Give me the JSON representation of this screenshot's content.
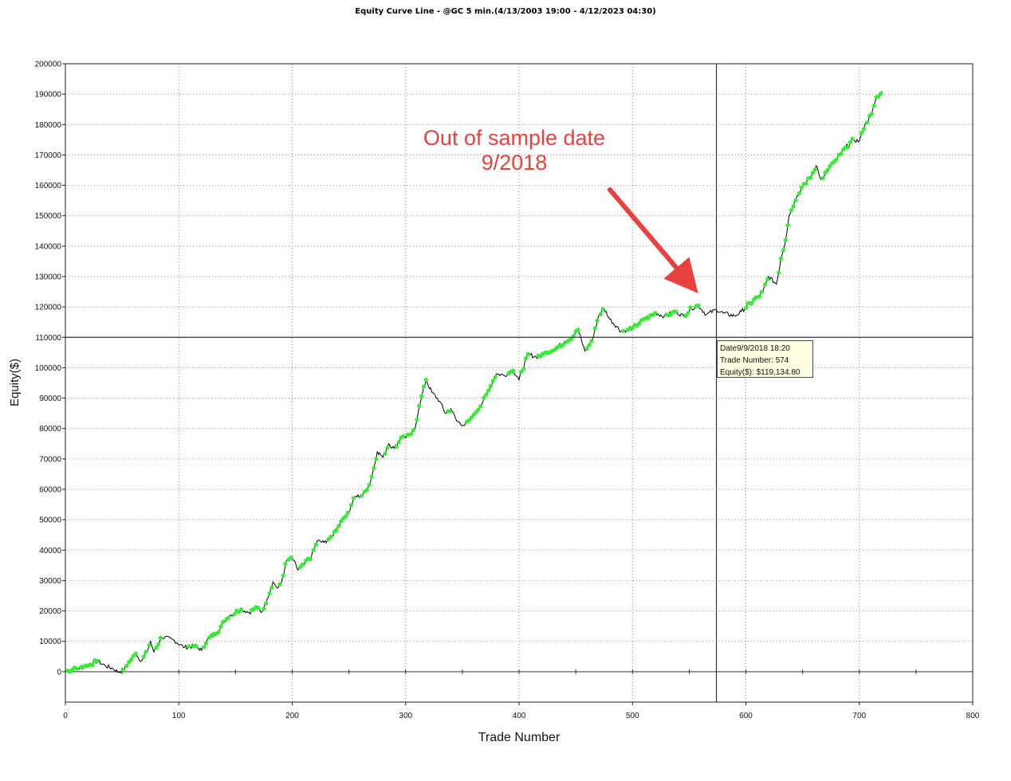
{
  "chart_data": {
    "type": "line",
    "title": "Equity Curve Line - @GC 5 min.(4/13/2003 19:00 - 4/12/2023 04:30)",
    "xlabel": "Trade Number",
    "ylabel": "Equity($)",
    "xlim": [
      0,
      800
    ],
    "ylim": [
      -10000,
      200000
    ],
    "xticks": [
      0,
      100,
      200,
      300,
      400,
      500,
      600,
      700,
      800
    ],
    "yticks": [
      0,
      10000,
      20000,
      30000,
      40000,
      50000,
      60000,
      70000,
      80000,
      90000,
      100000,
      110000,
      120000,
      130000,
      140000,
      150000,
      160000,
      170000,
      180000,
      190000,
      200000
    ],
    "grid": true,
    "line_color": "#000000",
    "marker_color": "#33ee33",
    "series": [
      {
        "points": [
          [
            0,
            0
          ],
          [
            10,
            1000
          ],
          [
            20,
            2000
          ],
          [
            28,
            3500
          ],
          [
            35,
            2000
          ],
          [
            42,
            1000
          ],
          [
            47,
            -200
          ],
          [
            52,
            1000
          ],
          [
            58,
            4000
          ],
          [
            62,
            6000
          ],
          [
            67,
            3500
          ],
          [
            72,
            6500
          ],
          [
            75,
            10000
          ],
          [
            78,
            6500
          ],
          [
            85,
            11500
          ],
          [
            95,
            10500
          ],
          [
            105,
            8000
          ],
          [
            115,
            8500
          ],
          [
            120,
            7000
          ],
          [
            125,
            10500
          ],
          [
            133,
            12500
          ],
          [
            140,
            16500
          ],
          [
            145,
            18500
          ],
          [
            155,
            20500
          ],
          [
            162,
            19500
          ],
          [
            170,
            21000
          ],
          [
            173,
            19500
          ],
          [
            178,
            24000
          ],
          [
            183,
            29500
          ],
          [
            187,
            27500
          ],
          [
            190,
            28500
          ],
          [
            195,
            36500
          ],
          [
            200,
            37500
          ],
          [
            205,
            33500
          ],
          [
            210,
            35000
          ],
          [
            217,
            38000
          ],
          [
            222,
            43000
          ],
          [
            228,
            42500
          ],
          [
            235,
            44500
          ],
          [
            243,
            49500
          ],
          [
            250,
            52500
          ],
          [
            255,
            57500
          ],
          [
            262,
            58000
          ],
          [
            268,
            61500
          ],
          [
            272,
            67000
          ],
          [
            275,
            72500
          ],
          [
            280,
            70500
          ],
          [
            285,
            75000
          ],
          [
            290,
            73500
          ],
          [
            296,
            77000
          ],
          [
            303,
            77500
          ],
          [
            308,
            79500
          ],
          [
            312,
            87500
          ],
          [
            318,
            96000
          ],
          [
            323,
            92000
          ],
          [
            330,
            89000
          ],
          [
            335,
            85000
          ],
          [
            340,
            86500
          ],
          [
            345,
            82500
          ],
          [
            352,
            81000
          ],
          [
            360,
            84500
          ],
          [
            367,
            88000
          ],
          [
            373,
            92500
          ],
          [
            380,
            98000
          ],
          [
            387,
            97500
          ],
          [
            395,
            99000
          ],
          [
            400,
            96000
          ],
          [
            408,
            104500
          ],
          [
            415,
            103500
          ],
          [
            425,
            105000
          ],
          [
            433,
            106500
          ],
          [
            440,
            108500
          ],
          [
            448,
            110500
          ],
          [
            452,
            112500
          ],
          [
            458,
            105500
          ],
          [
            465,
            109500
          ],
          [
            470,
            117000
          ],
          [
            475,
            119500
          ],
          [
            480,
            116000
          ],
          [
            490,
            112000
          ],
          [
            500,
            113000
          ],
          [
            510,
            116000
          ],
          [
            520,
            118000
          ],
          [
            528,
            117000
          ],
          [
            538,
            118500
          ],
          [
            545,
            117000
          ],
          [
            552,
            119500
          ],
          [
            558,
            120500
          ],
          [
            565,
            117500
          ],
          [
            574,
            119134.8
          ],
          [
            580,
            118000
          ],
          [
            590,
            117000
          ],
          [
            596,
            118500
          ],
          [
            603,
            121000
          ],
          [
            610,
            123000
          ],
          [
            615,
            125000
          ],
          [
            620,
            130000
          ],
          [
            627,
            127500
          ],
          [
            631,
            136000
          ],
          [
            635,
            142000
          ],
          [
            638,
            150000
          ],
          [
            645,
            156500
          ],
          [
            651,
            160500
          ],
          [
            657,
            162500
          ],
          [
            662,
            166500
          ],
          [
            666,
            162000
          ],
          [
            672,
            165000
          ],
          [
            680,
            168500
          ],
          [
            688,
            172500
          ],
          [
            695,
            175000
          ],
          [
            700,
            174500
          ],
          [
            705,
            180000
          ],
          [
            711,
            183500
          ],
          [
            715,
            189000
          ],
          [
            720,
            191000
          ]
        ]
      }
    ],
    "crosshair": {
      "x": 574,
      "y": 110000
    }
  },
  "annotation": {
    "line1": "Out of sample date",
    "line2": "9/2018",
    "color": "#e8413f"
  },
  "tooltip": {
    "date": "Date9/9/2018 18:20",
    "trade": "Trade Number: 574",
    "equity": "Equity($): $119,134.80"
  }
}
